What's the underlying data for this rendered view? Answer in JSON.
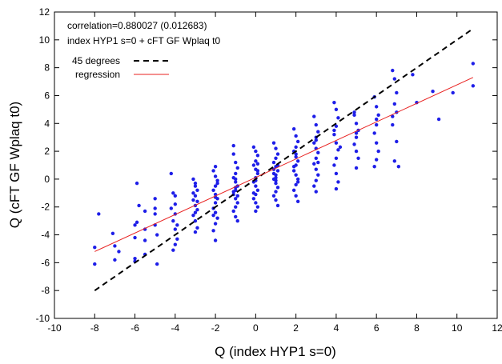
{
  "chart_data": {
    "type": "scatter",
    "xlabel": "Q (index HYP1 s=0)",
    "ylabel": "Q (cFT GF Wplaq t0)",
    "xlim": [
      -10,
      12
    ],
    "ylim": [
      -10,
      12
    ],
    "xticks": [
      -10,
      -8,
      -6,
      -4,
      -2,
      0,
      2,
      4,
      6,
      8,
      10,
      12
    ],
    "yticks": [
      -10,
      -8,
      -6,
      -4,
      -2,
      0,
      2,
      4,
      6,
      8,
      10,
      12
    ],
    "grid": false,
    "legend_position": "top-left",
    "annotations": [
      "correlation=0.880027 (0.012683)",
      "index HYP1 s=0 + cFT GF Wplaq t0"
    ],
    "legend": [
      {
        "label": "45 degrees",
        "style": "dashed",
        "color": "#000000"
      },
      {
        "label": "regression",
        "style": "solid",
        "color": "#e8201f"
      }
    ],
    "lines": {
      "diagonal": {
        "x": [
          -8,
          10.8
        ],
        "y": [
          -8,
          10.8
        ]
      },
      "regression": {
        "x": [
          -8,
          10.8
        ],
        "y": [
          -5.2,
          7.3
        ]
      }
    },
    "points_color": "#1e1ee8",
    "points": [
      [
        -8,
        -4.9
      ],
      [
        -8,
        -6.1
      ],
      [
        -7.8,
        -2.5
      ],
      [
        -7,
        -4.8
      ],
      [
        -7,
        -5.8
      ],
      [
        -6.8,
        -5.2
      ],
      [
        -7.1,
        -3.9
      ],
      [
        -6,
        -5.7
      ],
      [
        -6,
        -3.3
      ],
      [
        -6,
        -4.2
      ],
      [
        -6,
        -5.9
      ],
      [
        -5.9,
        -0.3
      ],
      [
        -5.8,
        -1.9
      ],
      [
        -5.9,
        -3.1
      ],
      [
        -5.5,
        -3.6
      ],
      [
        -5.5,
        -5.4
      ],
      [
        -5.5,
        -4.4
      ],
      [
        -5.5,
        -2.3
      ],
      [
        -5,
        -2.1
      ],
      [
        -5,
        -1.4
      ],
      [
        -5,
        -2.5
      ],
      [
        -4.9,
        -4.0
      ],
      [
        -4.9,
        -6.1
      ],
      [
        -5,
        -3.3
      ],
      [
        -4.1,
        -1.0
      ],
      [
        -4.0,
        -1.8
      ],
      [
        -4.0,
        -2.5
      ],
      [
        -4.1,
        -3.0
      ],
      [
        -4.0,
        -3.6
      ],
      [
        -3.9,
        -4.3
      ],
      [
        -4.0,
        -4.7
      ],
      [
        -4.1,
        -5.1
      ],
      [
        -4.2,
        0.4
      ],
      [
        -4.0,
        -1.2
      ],
      [
        -4.2,
        -2.1
      ],
      [
        -3.9,
        -3.3
      ],
      [
        -3.1,
        0.0
      ],
      [
        -3.0,
        -0.5
      ],
      [
        -2.9,
        -0.8
      ],
      [
        -3.0,
        -1.2
      ],
      [
        -3.1,
        -1.5
      ],
      [
        -3.0,
        -1.9
      ],
      [
        -2.9,
        -2.2
      ],
      [
        -3.1,
        -2.6
      ],
      [
        -3.0,
        -3.0
      ],
      [
        -2.9,
        -3.5
      ],
      [
        -3.0,
        -0.3
      ],
      [
        -3.1,
        -1.0
      ],
      [
        -2.9,
        -1.6
      ],
      [
        -3.0,
        -2.4
      ],
      [
        -3.0,
        -3.8
      ],
      [
        -2.1,
        0.6
      ],
      [
        -2.0,
        0.2
      ],
      [
        -1.9,
        -0.1
      ],
      [
        -2.0,
        -0.5
      ],
      [
        -2.1,
        -0.8
      ],
      [
        -2.0,
        -1.1
      ],
      [
        -1.9,
        -1.4
      ],
      [
        -2.0,
        -1.7
      ],
      [
        -2.1,
        -2.1
      ],
      [
        -2.0,
        -2.4
      ],
      [
        -1.9,
        -2.8
      ],
      [
        -2.0,
        -3.2
      ],
      [
        -2.1,
        -3.7
      ],
      [
        -2.0,
        -4.4
      ],
      [
        -1.9,
        -0.3
      ],
      [
        -2.0,
        -1.3
      ],
      [
        -2.1,
        -2.6
      ],
      [
        -2.0,
        0.9
      ],
      [
        -1.1,
        1.8
      ],
      [
        -1.0,
        1.2
      ],
      [
        -0.9,
        0.8
      ],
      [
        -1.0,
        0.4
      ],
      [
        -1.1,
        0.1
      ],
      [
        -1.0,
        -0.2
      ],
      [
        -0.9,
        -0.5
      ],
      [
        -1.0,
        -0.8
      ],
      [
        -1.1,
        -1.1
      ],
      [
        -1.0,
        -1.4
      ],
      [
        -0.9,
        -1.7
      ],
      [
        -1.0,
        -2.0
      ],
      [
        -1.1,
        -2.3
      ],
      [
        -1.0,
        -2.7
      ],
      [
        -0.9,
        -3.0
      ],
      [
        -1.1,
        2.4
      ],
      [
        -1.0,
        -0.6
      ],
      [
        -0.9,
        -1.2
      ],
      [
        -1.0,
        0.0
      ],
      [
        -1.1,
        -0.9
      ],
      [
        -0.1,
        2.3
      ],
      [
        0.0,
        2.0
      ],
      [
        0.1,
        1.7
      ],
      [
        0.0,
        1.3
      ],
      [
        -0.1,
        1.0
      ],
      [
        0.0,
        0.7
      ],
      [
        0.1,
        0.4
      ],
      [
        0.0,
        0.1
      ],
      [
        -0.1,
        -0.2
      ],
      [
        0.0,
        -0.5
      ],
      [
        0.1,
        -0.8
      ],
      [
        0.0,
        -1.1
      ],
      [
        -0.1,
        -1.4
      ],
      [
        0.0,
        -1.7
      ],
      [
        0.1,
        -2.0
      ],
      [
        0.0,
        -2.3
      ],
      [
        -0.1,
        -1.0
      ],
      [
        0.1,
        0.6
      ],
      [
        0.0,
        -0.1
      ],
      [
        0.1,
        1.1
      ],
      [
        0.9,
        2.6
      ],
      [
        1.0,
        2.2
      ],
      [
        1.1,
        1.8
      ],
      [
        1.0,
        1.5
      ],
      [
        0.9,
        1.2
      ],
      [
        1.0,
        0.9
      ],
      [
        1.1,
        0.6
      ],
      [
        1.0,
        0.3
      ],
      [
        0.9,
        0.0
      ],
      [
        1.0,
        -0.3
      ],
      [
        1.1,
        -0.6
      ],
      [
        1.0,
        -0.9
      ],
      [
        0.9,
        -1.2
      ],
      [
        1.0,
        -1.5
      ],
      [
        1.1,
        -1.9
      ],
      [
        0.9,
        0.7
      ],
      [
        1.0,
        0.1
      ],
      [
        1.1,
        1.0
      ],
      [
        1.0,
        -0.1
      ],
      [
        0.9,
        0.4
      ],
      [
        1.9,
        3.6
      ],
      [
        2.0,
        3.1
      ],
      [
        2.1,
        2.7
      ],
      [
        2.0,
        2.3
      ],
      [
        1.9,
        2.0
      ],
      [
        2.0,
        1.6
      ],
      [
        2.1,
        1.3
      ],
      [
        2.0,
        1.0
      ],
      [
        1.9,
        0.6
      ],
      [
        2.0,
        0.3
      ],
      [
        2.1,
        0.0
      ],
      [
        2.0,
        -0.4
      ],
      [
        1.9,
        -0.8
      ],
      [
        2.0,
        -1.2
      ],
      [
        2.1,
        -1.6
      ],
      [
        2.0,
        1.8
      ],
      [
        1.9,
        0.9
      ],
      [
        2.1,
        -0.2
      ],
      [
        2.9,
        4.5
      ],
      [
        3.0,
        3.9
      ],
      [
        3.1,
        3.4
      ],
      [
        3.0,
        3.0
      ],
      [
        2.9,
        2.6
      ],
      [
        3.0,
        2.2
      ],
      [
        3.1,
        1.9
      ],
      [
        3.0,
        1.5
      ],
      [
        2.9,
        1.1
      ],
      [
        3.0,
        0.7
      ],
      [
        3.1,
        0.3
      ],
      [
        3.0,
        -0.1
      ],
      [
        2.9,
        -0.5
      ],
      [
        3.0,
        -0.9
      ],
      [
        3.0,
        2.8
      ],
      [
        3.1,
        1.2
      ],
      [
        3.9,
        5.5
      ],
      [
        4.0,
        5.0
      ],
      [
        4.1,
        4.4
      ],
      [
        4.0,
        3.8
      ],
      [
        3.9,
        3.2
      ],
      [
        4.0,
        2.6
      ],
      [
        4.1,
        2.1
      ],
      [
        4.0,
        1.5
      ],
      [
        3.9,
        1.0
      ],
      [
        4.0,
        0.4
      ],
      [
        4.1,
        -0.2
      ],
      [
        4.0,
        -0.7
      ],
      [
        3.9,
        3.5
      ],
      [
        4.2,
        2.3
      ],
      [
        4.9,
        4.6
      ],
      [
        5.0,
        4.0
      ],
      [
        5.1,
        3.5
      ],
      [
        5.0,
        3.0
      ],
      [
        4.9,
        2.5
      ],
      [
        5.0,
        2.0
      ],
      [
        5.1,
        1.5
      ],
      [
        5.0,
        0.8
      ],
      [
        4.9,
        4.8
      ],
      [
        5.0,
        3.3
      ],
      [
        5.9,
        5.9
      ],
      [
        6.0,
        5.2
      ],
      [
        6.1,
        4.6
      ],
      [
        6.0,
        3.9
      ],
      [
        5.9,
        3.3
      ],
      [
        6.0,
        2.6
      ],
      [
        6.1,
        2.0
      ],
      [
        6.0,
        1.4
      ],
      [
        5.9,
        0.9
      ],
      [
        6.0,
        4.3
      ],
      [
        6.8,
        7.8
      ],
      [
        6.9,
        7.2
      ],
      [
        7.0,
        6.2
      ],
      [
        6.9,
        5.4
      ],
      [
        7.0,
        4.8
      ],
      [
        6.8,
        3.9
      ],
      [
        7.0,
        2.7
      ],
      [
        6.9,
        1.3
      ],
      [
        7.1,
        0.9
      ],
      [
        6.8,
        4.5
      ],
      [
        7.8,
        7.5
      ],
      [
        8.0,
        5.5
      ],
      [
        8.8,
        6.3
      ],
      [
        9.1,
        4.3
      ],
      [
        9.8,
        6.2
      ],
      [
        10.8,
        8.3
      ],
      [
        10.8,
        6.7
      ]
    ]
  }
}
